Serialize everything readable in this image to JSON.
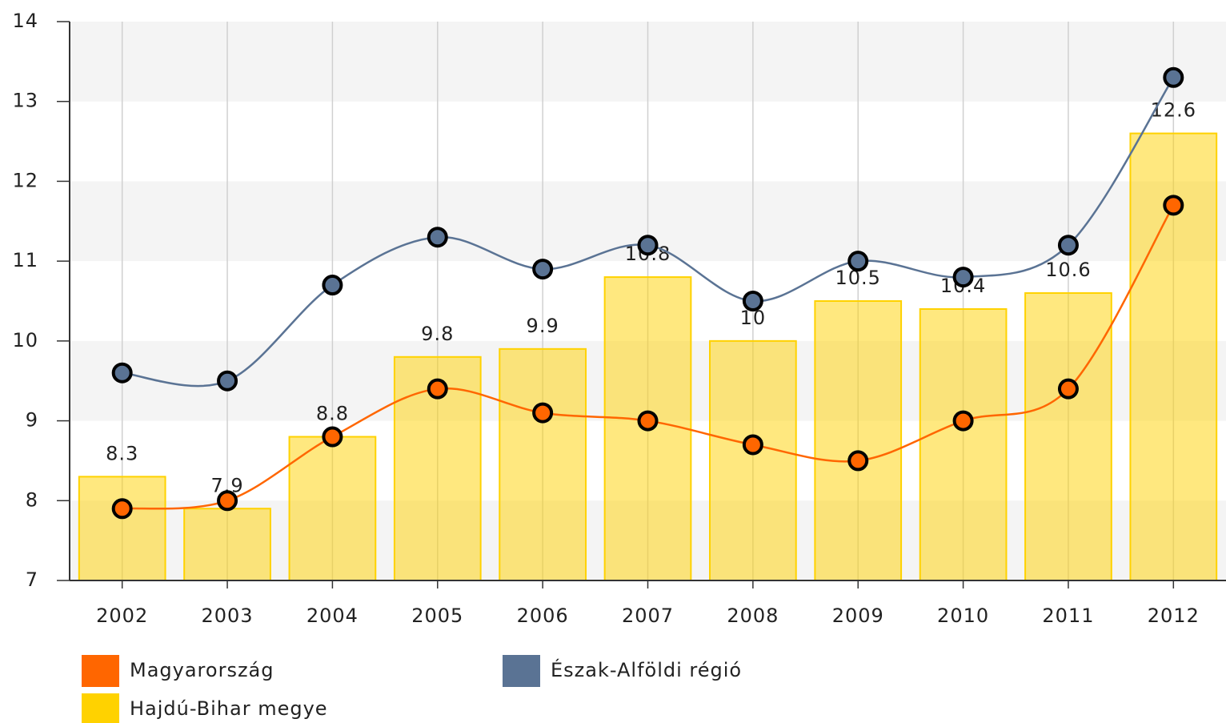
{
  "chart_data": {
    "type": "bar_line",
    "categories": [
      "2002",
      "2003",
      "2004",
      "2005",
      "2006",
      "2007",
      "2008",
      "2009",
      "2010",
      "2011",
      "2012"
    ],
    "ylim": [
      7,
      14
    ],
    "yticks": [
      7,
      8,
      9,
      10,
      11,
      12,
      13,
      14
    ],
    "grid": true,
    "series": [
      {
        "name": "Magyarország",
        "type": "line",
        "color": "#ff6600",
        "values": [
          7.9,
          8.0,
          8.8,
          9.4,
          9.1,
          9.0,
          8.7,
          8.5,
          9.0,
          9.4,
          11.7
        ]
      },
      {
        "name": "Észak-Alföldi régió",
        "type": "line",
        "color": "#5a7394",
        "values": [
          9.6,
          9.5,
          10.7,
          11.3,
          10.9,
          11.2,
          10.5,
          11.0,
          10.8,
          11.2,
          13.3
        ]
      },
      {
        "name": "Hajdú-Bihar megye",
        "type": "bar",
        "color": "#ffd200",
        "values": [
          8.3,
          7.9,
          8.8,
          9.8,
          9.9,
          10.8,
          10,
          10.5,
          10.4,
          10.6,
          12.6
        ]
      }
    ]
  }
}
